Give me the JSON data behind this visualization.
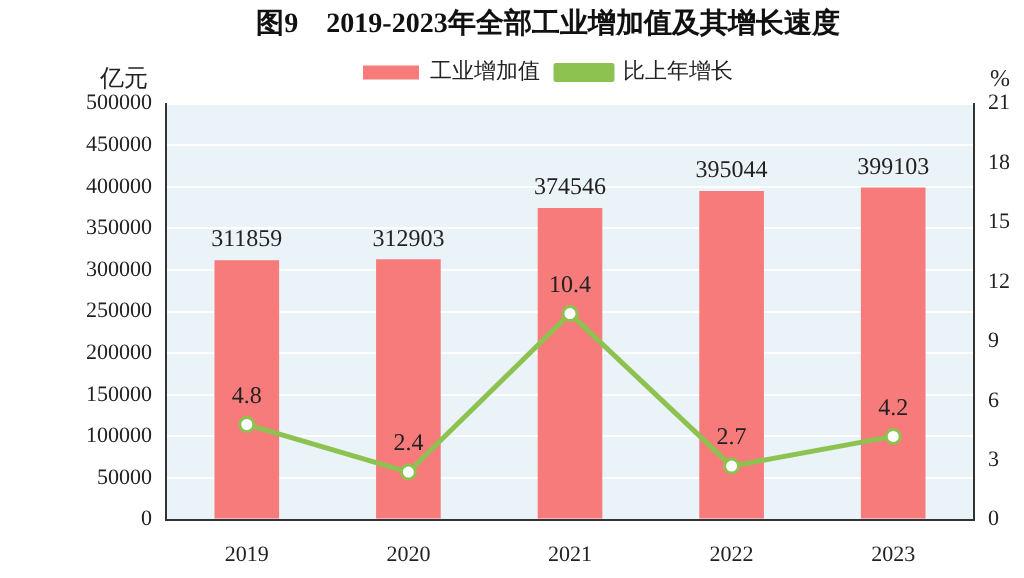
{
  "chart_data": {
    "type": "bar",
    "title": "图9　2019-2023年全部工业增加值及其增长速度",
    "ylabel": "亿元",
    "y2label": "%",
    "categories": [
      "2019",
      "2020",
      "2021",
      "2022",
      "2023"
    ],
    "series": [
      {
        "name": "工业增加值",
        "color": "#f77b7b",
        "values": [
          311859,
          312903,
          374546,
          395044,
          399103
        ]
      },
      {
        "name": "比上年增长",
        "type": "line",
        "axis": "y2",
        "color": "#8dc250",
        "values": [
          4.8,
          2.4,
          10.4,
          2.7,
          4.2
        ]
      }
    ],
    "ylim": [
      0,
      500000
    ],
    "yticks": [
      0,
      50000,
      100000,
      150000,
      200000,
      250000,
      300000,
      350000,
      400000,
      450000,
      500000
    ],
    "y2lim": [
      0,
      21
    ],
    "y2ticks": [
      0,
      3,
      6,
      9,
      12,
      15,
      18,
      21
    ],
    "data_labels": true,
    "grid": "y",
    "legend": "top left",
    "marker": "circle",
    "line_style": "solid"
  }
}
